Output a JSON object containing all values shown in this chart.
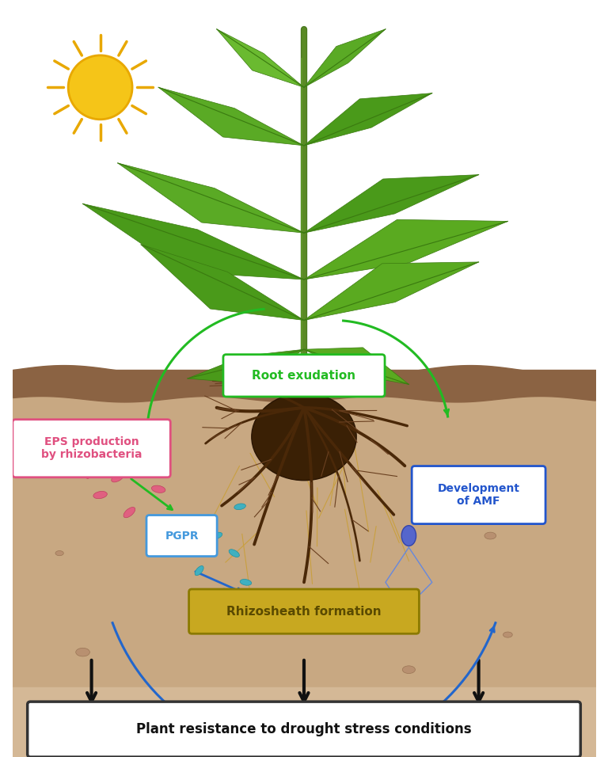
{
  "fig_width": 7.68,
  "fig_height": 9.56,
  "bg_color": "#ffffff",
  "soil_color_top": "#c8a882",
  "soil_color_mid": "#b8906a",
  "soil_color_deep": "#d4b896",
  "soil_strip1_color": "#8B6343",
  "soil_strip2_color": "#A0714F",
  "sun_color": "#F5C518",
  "sun_ray_color": "#E8A800",
  "labels": {
    "root_exudation": "Root exudation",
    "eps_production": "EPS production\nby rhizobacteria",
    "pgpr": "PGPR",
    "development_amf": "Development\nof AMF",
    "rhizosheath": "Rhizosheath formation",
    "resistance": "Plant resistance to drought stress conditions"
  },
  "box_colors": {
    "root_exudation_bg": "#ffffff",
    "root_exudation_border": "#22bb22",
    "root_exudation_text": "#22bb22",
    "eps_bg": "#ffffff",
    "eps_border": "#e05080",
    "eps_text": "#e05080",
    "pgpr_bg": "#ffffff",
    "pgpr_border": "#4499dd",
    "pgpr_text": "#4499dd",
    "amf_bg": "#ffffff",
    "amf_border": "#2255cc",
    "amf_text": "#2255cc",
    "rhizosheath_bg": "#c8a820",
    "rhizosheath_border": "#8B7A00",
    "rhizosheath_text": "#5a4a00",
    "resistance_bg": "#ffffff",
    "resistance_border": "#333333",
    "resistance_text": "#111111"
  },
  "arrow_colors": {
    "green": "#22bb22",
    "blue": "#2266cc",
    "black": "#111111"
  }
}
